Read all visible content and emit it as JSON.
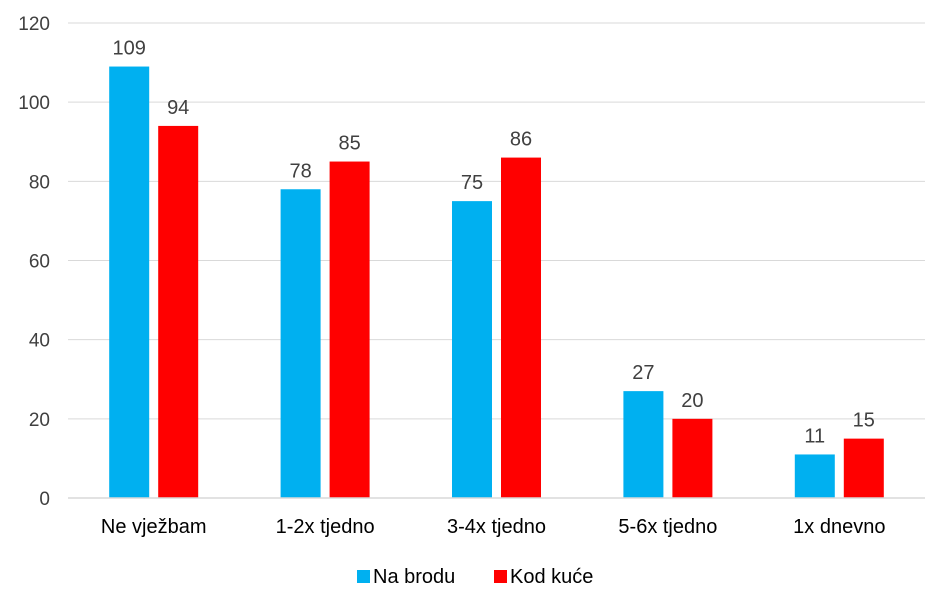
{
  "chart_data": {
    "type": "bar",
    "categories": [
      "Ne vježbam",
      "1-2x tjedno",
      "3-4x tjedno",
      "5-6x tjedno",
      "1x dnevno"
    ],
    "series": [
      {
        "name": "Na brodu",
        "color": "#00B0F0",
        "values": [
          109,
          78,
          75,
          27,
          11
        ]
      },
      {
        "name": "Kod kuće",
        "color": "#FF0000",
        "values": [
          94,
          85,
          86,
          20,
          15
        ]
      }
    ],
    "yticks": [
      0,
      20,
      40,
      60,
      80,
      100,
      120
    ],
    "ylim": [
      0,
      120
    ],
    "grid": true,
    "legend": "bottom"
  }
}
